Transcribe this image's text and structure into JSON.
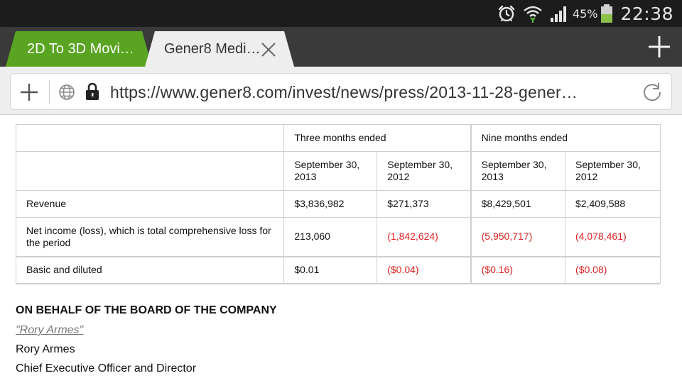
{
  "status_bar": {
    "icons": [
      "alarm-clock-icon",
      "wifi-icon",
      "signal-icon",
      "battery-icon"
    ],
    "battery_percent": "45%",
    "clock": "22:38",
    "battery_color": "#8bc34a"
  },
  "tabs": [
    {
      "label": "2D To 3D Movi…",
      "active": false,
      "color": "#59a421"
    },
    {
      "label": "Gener8 Medi…",
      "active": true
    }
  ],
  "address_bar": {
    "url": "https://www.gener8.com/invest/news/press/2013-11-28-gener…"
  },
  "table": {
    "group_headers": [
      "Three months ended",
      "Nine months ended"
    ],
    "date_headers": [
      "September 30, 2013",
      "September 30, 2012",
      "September 30, 2013",
      "September 30, 2012"
    ],
    "rows": [
      {
        "label": "Revenue",
        "values": [
          "$3,836,982",
          "$271,373",
          "$8,429,501",
          "$2,409,588"
        ]
      },
      {
        "label": "Net income (loss), which is total comprehensive loss for the period",
        "values": [
          "213,060",
          "(1,842,624)",
          "(5,950,717)",
          "(4,078,461)"
        ]
      },
      {
        "label": "Basic and diluted",
        "values": [
          "$0.01",
          "($0.04)",
          "($0.16)",
          "($0.08)"
        ]
      }
    ],
    "negative_color": "#e02020"
  },
  "signature": {
    "heading": "ON BEHALF OF THE BOARD OF THE COMPANY",
    "signed": "\"Rory Armes\"",
    "name": "Rory Armes",
    "title": "Chief Executive Officer and Director"
  }
}
